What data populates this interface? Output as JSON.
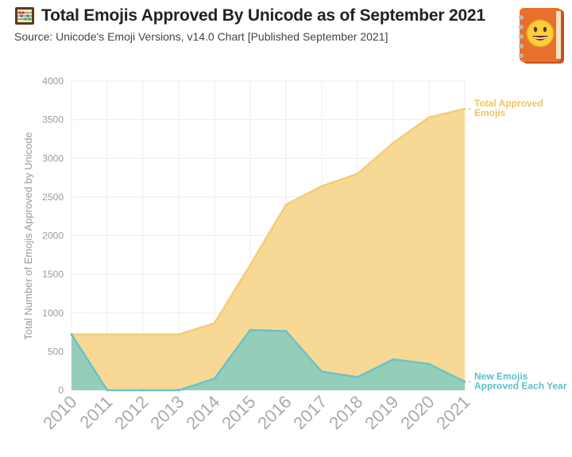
{
  "header": {
    "title": "Total Emojis Approved By Unicode as of September 2021",
    "subtitle": "Source: Unicode's Emoji Versions, v14.0 Chart [Published September 2021]",
    "title_icon": "abacus-icon",
    "logo_icon": "emoji-book-icon"
  },
  "colors": {
    "total_fill": "#f7d995",
    "total_line": "#f2cd78",
    "new_fill": "#8ecdbb",
    "new_line": "#6cc1c9",
    "total_label": "#f2c35e",
    "new_label": "#5cc0c8"
  },
  "chart_data": {
    "type": "area",
    "title": "Total Emojis Approved By Unicode as of September 2021",
    "xlabel": "",
    "ylabel": "Total Number of Emojis Approved by Unicode",
    "x": [
      "2010",
      "2011",
      "2012",
      "2013",
      "2014",
      "2015",
      "2016",
      "2017",
      "2018",
      "2019",
      "2020",
      "2021"
    ],
    "ylim": [
      0,
      4000
    ],
    "yticks": [
      "0",
      "500",
      "1000",
      "1500",
      "2000",
      "2500",
      "3000",
      "3500",
      "4000"
    ],
    "grid": true,
    "series": [
      {
        "name": "Total Approved Emojis",
        "label_lines": [
          "Total Approved",
          "Emojis"
        ],
        "values": [
          722,
          722,
          722,
          722,
          868,
          1620,
          2400,
          2640,
          2800,
          3200,
          3530,
          3640
        ]
      },
      {
        "name": "New Emojis Approved Each Year",
        "label_lines": [
          "New Emojis",
          "Approved Each Year"
        ],
        "values": [
          722,
          0,
          0,
          0,
          150,
          780,
          765,
          240,
          170,
          400,
          340,
          110
        ]
      }
    ]
  }
}
